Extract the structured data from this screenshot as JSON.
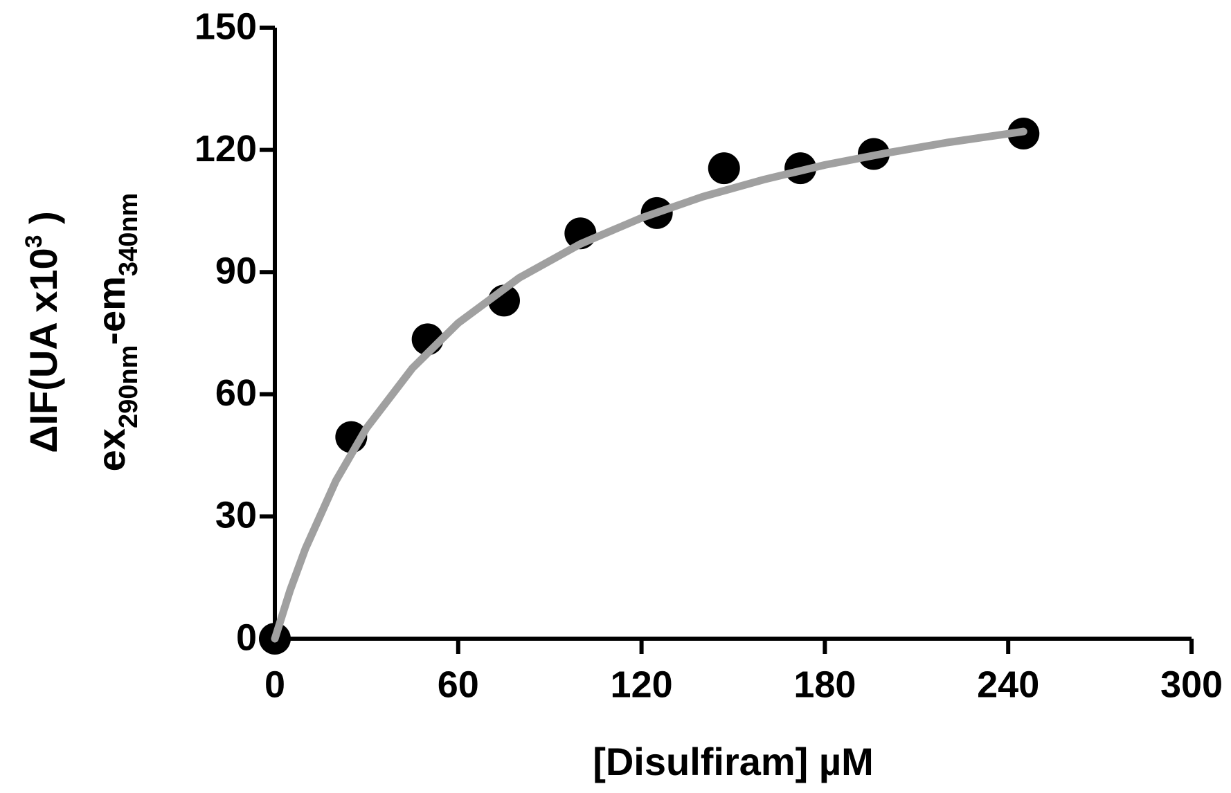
{
  "chart_data": {
    "type": "scatter",
    "x_label": "[Disulfiram] µM",
    "y_label_line1": [
      "ΔIF(UA x10",
      "3",
      " )"
    ],
    "y_label_line2": [
      "ex",
      "290nm",
      "-em",
      "340nm"
    ],
    "xlim": [
      0,
      300
    ],
    "xticks": [
      0,
      60,
      120,
      180,
      240,
      300
    ],
    "ylim": [
      0,
      150
    ],
    "yticks": [
      0,
      30,
      60,
      90,
      120,
      150
    ],
    "series": [
      {
        "type": "scatter",
        "color": "#000000",
        "x": [
          0,
          25,
          50,
          75,
          100,
          125,
          147,
          172,
          196,
          245
        ],
        "values": [
          0,
          49.5,
          73.5,
          83,
          99.5,
          104.5,
          115.5,
          115.5,
          119,
          124
        ]
      },
      {
        "type": "line",
        "color": "#a0a0a0",
        "x": [
          0,
          5,
          10,
          20,
          30,
          45,
          60,
          80,
          100,
          120,
          140,
          160,
          180,
          200,
          220,
          245
        ],
        "values": [
          0,
          11.9,
          22.1,
          38.8,
          51.7,
          66.4,
          77.5,
          88.6,
          96.9,
          103.3,
          108.5,
          112.7,
          116.3,
          119.2,
          121.8,
          124.5
        ]
      }
    ]
  }
}
